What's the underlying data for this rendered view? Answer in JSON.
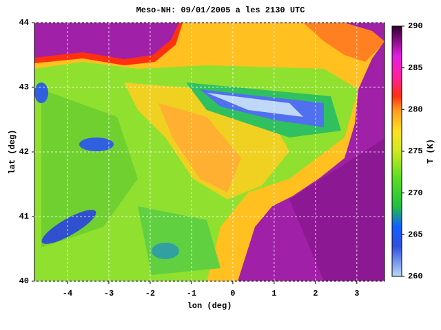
{
  "chart_data": {
    "type": "map",
    "title": "Meso-NH: 09/01/2005 a les 2130 UTC",
    "x_label": "lon (deg)",
    "y_label": "lat (deg)",
    "xlim": [
      -4.8,
      3.67
    ],
    "ylim": [
      40,
      44
    ],
    "xticks": [
      -4,
      -3,
      -2,
      -1,
      0,
      1,
      2,
      3
    ],
    "yticks": [
      40,
      41,
      42,
      43,
      44
    ],
    "grid": true,
    "colorbar": {
      "label": "T (K)",
      "lim": [
        260,
        290
      ],
      "ticks": [
        260,
        265,
        270,
        275,
        280,
        285,
        290
      ]
    }
  }
}
